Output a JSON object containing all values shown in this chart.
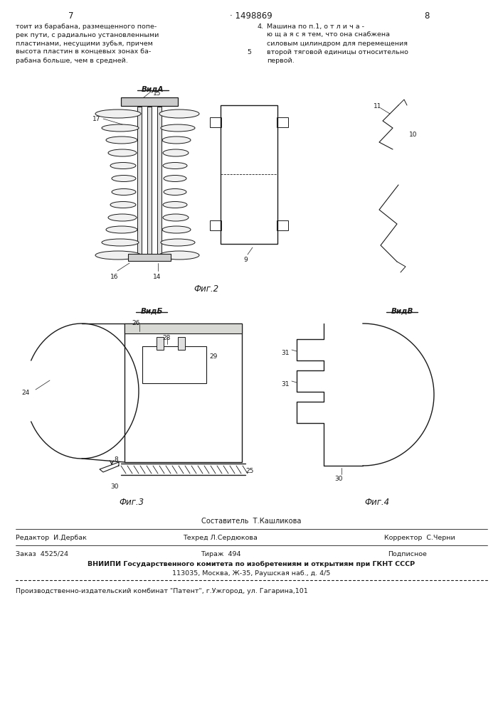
{
  "bg_color": "#ffffff",
  "page_width": 7.07,
  "page_height": 10.0,
  "header_page_left": "7",
  "header_patent": "· 1498869",
  "header_page_right": "8",
  "text_left": "тоит из барабана, размещенного попе-\nрек пути, с радиально установленными\nпластинами, несущими зубья, причем\nвысота пластин в концевых зонах ба-\nрабана больше, чем в средней.",
  "text_right_num": "4.",
  "text_right_body": "Машина по п.1, о т л и ч а -\nю щ а я с я тем, что она снабжена\nсиловым цилиндром для перемещения\nвторой тяговой единицы относительно\nпервой.",
  "line_number_5": "5",
  "fig2_label": "Фиг.2",
  "fig3_label": "Фиг.3",
  "fig4_label": "Фиг.4",
  "vid_a_label": "ВидА",
  "vid_b_label": "ВидБ",
  "vid_v_label": "ВидВ",
  "footer_sostavitel": "Составитель  Т.Кашликова",
  "footer_redaktor": "Редактор  И.Дербак",
  "footer_tehred": "Техред Л.Сердюкова",
  "footer_korrektor": "Корректор  С.Черни",
  "footer_zakaz": "Заказ  4525/24",
  "footer_tirazh": "Тираж  494",
  "footer_podpisnoe": "Подписное",
  "footer_vnipi": "ВНИИПИ Государственного комитета по изобретениям и открытиям при ГКНТ СССР",
  "footer_address": "113035, Москва, Ж-35, Раушская наб., д. 4/5",
  "footer_patent": "Производственно-издательский комбинат \"Патент\", г.Ужгород, ул. Гагарина,101",
  "line_color": "#1a1a1a",
  "text_color": "#1a1a1a",
  "font_size_body": 6.8,
  "font_size_label": 7.5,
  "font_size_fig": 8.5,
  "font_size_header": 8.5,
  "font_size_num": 6.5
}
